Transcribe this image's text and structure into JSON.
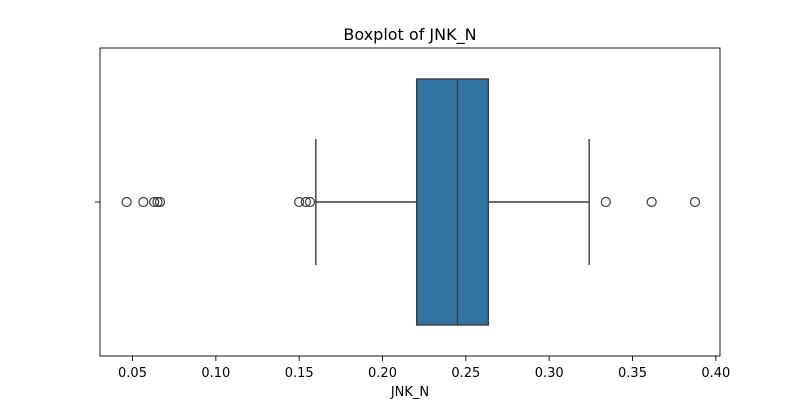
{
  "chart_data": {
    "type": "box",
    "title": "Boxplot of JNK_N",
    "xlabel": "JNK_N",
    "ylabel": "",
    "xlim": [
      0.0305,
      0.4025
    ],
    "xticks": [
      0.05,
      0.1,
      0.15,
      0.2,
      0.25,
      0.3,
      0.35,
      0.4
    ],
    "xtick_labels": [
      "0.05",
      "0.10",
      "0.15",
      "0.20",
      "0.25",
      "0.30",
      "0.35",
      "0.40"
    ],
    "grid": false,
    "box": {
      "whisker_low": 0.16,
      "q1": 0.2205,
      "median": 0.245,
      "q3": 0.2635,
      "whisker_high": 0.324
    },
    "outliers": [
      0.0465,
      0.0565,
      0.063,
      0.065,
      0.0665,
      0.15,
      0.154,
      0.1565,
      0.334,
      0.3615,
      0.3875
    ],
    "colors": {
      "box_fill": "#3274a1",
      "line": "#3d3d3d",
      "axis": "#000000"
    }
  }
}
